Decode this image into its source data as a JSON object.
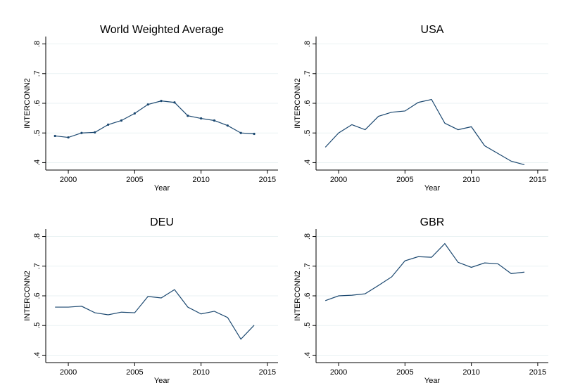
{
  "chart_data": [
    {
      "type": "line",
      "title": "World Weighted Average",
      "xlabel": "Year",
      "ylabel": "INTERCONN2",
      "color": "#1a476f",
      "markers": true,
      "grid": true,
      "x": [
        1999,
        2000,
        2001,
        2002,
        2003,
        2004,
        2005,
        2006,
        2007,
        2008,
        2009,
        2010,
        2011,
        2012,
        2013,
        2014
      ],
      "values": [
        0.49,
        0.485,
        0.5,
        0.502,
        0.528,
        0.542,
        0.566,
        0.596,
        0.608,
        0.603,
        0.558,
        0.549,
        0.542,
        0.525,
        0.5,
        0.497
      ],
      "xlim": [
        1998.3,
        2015.8
      ],
      "ylim": [
        0.375,
        0.825
      ],
      "xticks": [
        2000,
        2005,
        2010,
        2015
      ],
      "yticks": [
        {
          "value": 0.4,
          "label": ".4"
        },
        {
          "value": 0.5,
          "label": ".5"
        },
        {
          "value": 0.6,
          "label": ".6"
        },
        {
          "value": 0.7,
          "label": ".7"
        },
        {
          "value": 0.8,
          "label": ".8"
        }
      ]
    },
    {
      "type": "line",
      "title": "USA",
      "xlabel": "Year",
      "ylabel": "INTERCONN2",
      "color": "#1a476f",
      "markers": false,
      "grid": true,
      "x": [
        1999,
        2000,
        2001,
        2002,
        2003,
        2004,
        2005,
        2006,
        2007,
        2008,
        2009,
        2010,
        2011,
        2012,
        2013,
        2014
      ],
      "values": [
        0.452,
        0.5,
        0.528,
        0.511,
        0.556,
        0.57,
        0.574,
        0.603,
        0.613,
        0.533,
        0.511,
        0.521,
        0.457,
        0.431,
        0.405,
        0.393
      ],
      "xlim": [
        1998.3,
        2015.8
      ],
      "ylim": [
        0.375,
        0.825
      ],
      "xticks": [
        2000,
        2005,
        2010,
        2015
      ],
      "yticks": [
        {
          "value": 0.4,
          "label": ".4"
        },
        {
          "value": 0.5,
          "label": ".5"
        },
        {
          "value": 0.6,
          "label": ".6"
        },
        {
          "value": 0.7,
          "label": ".7"
        },
        {
          "value": 0.8,
          "label": ".8"
        }
      ]
    },
    {
      "type": "line",
      "title": "DEU",
      "xlabel": "Year",
      "ylabel": "INTERCONN2",
      "color": "#1a476f",
      "markers": false,
      "grid": true,
      "x": [
        1999,
        2000,
        2001,
        2002,
        2003,
        2004,
        2005,
        2006,
        2007,
        2008,
        2009,
        2010,
        2011,
        2012,
        2013,
        2014
      ],
      "values": [
        0.562,
        0.562,
        0.565,
        0.543,
        0.536,
        0.545,
        0.543,
        0.598,
        0.593,
        0.621,
        0.562,
        0.539,
        0.548,
        0.527,
        0.454,
        0.501
      ],
      "xlim": [
        1998.3,
        2015.8
      ],
      "ylim": [
        0.375,
        0.825
      ],
      "xticks": [
        2000,
        2005,
        2010,
        2015
      ],
      "yticks": [
        {
          "value": 0.4,
          "label": ".4"
        },
        {
          "value": 0.5,
          "label": ".5"
        },
        {
          "value": 0.6,
          "label": ".6"
        },
        {
          "value": 0.7,
          "label": ".7"
        },
        {
          "value": 0.8,
          "label": ".8"
        }
      ]
    },
    {
      "type": "line",
      "title": "GBR",
      "xlabel": "Year",
      "ylabel": "INTERCONN2",
      "color": "#1a476f",
      "markers": false,
      "grid": true,
      "x": [
        1999,
        2000,
        2001,
        2002,
        2003,
        2004,
        2005,
        2006,
        2007,
        2008,
        2009,
        2010,
        2011,
        2012,
        2013,
        2014
      ],
      "values": [
        0.584,
        0.6,
        0.602,
        0.607,
        0.635,
        0.664,
        0.718,
        0.732,
        0.73,
        0.776,
        0.713,
        0.696,
        0.711,
        0.708,
        0.675,
        0.68
      ],
      "xlim": [
        1998.3,
        2015.8
      ],
      "ylim": [
        0.375,
        0.825
      ],
      "xticks": [
        2000,
        2005,
        2010,
        2015
      ],
      "yticks": [
        {
          "value": 0.4,
          "label": ".4"
        },
        {
          "value": 0.5,
          "label": ".5"
        },
        {
          "value": 0.6,
          "label": ".6"
        },
        {
          "value": 0.7,
          "label": ".7"
        },
        {
          "value": 0.8,
          "label": ".8"
        }
      ]
    }
  ]
}
